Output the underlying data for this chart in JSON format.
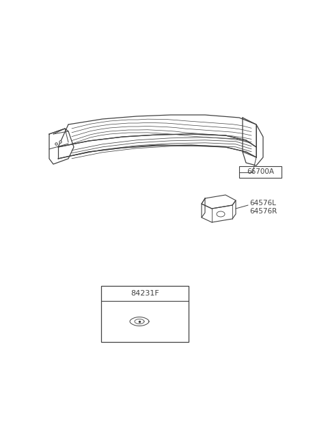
{
  "bg_color": "#ffffff",
  "line_color": "#404040",
  "label_66700A": "66700A",
  "label_64576L": "64576L",
  "label_64576R": "64576R",
  "label_84231F": "84231F",
  "fig_width": 4.8,
  "fig_height": 6.55,
  "dpi": 100
}
